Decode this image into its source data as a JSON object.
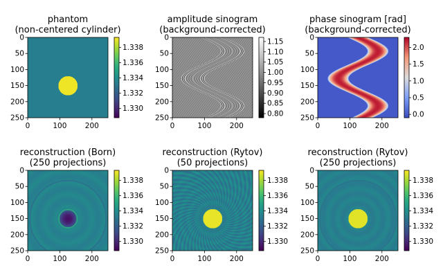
{
  "figure": {
    "panels": [
      {
        "title_lines": [
          "phantom",
          "(non-centered cylinder)"
        ],
        "kind": "phantom-cylinder",
        "colormap": "viridis",
        "xticks": [
          "0",
          "100",
          "200"
        ],
        "yticks": [
          "0",
          "50",
          "100",
          "150",
          "200",
          "250"
        ],
        "colorbar": {
          "ticks": [
            "1.338",
            "1.336",
            "1.334",
            "1.332",
            "1.330"
          ],
          "range": [
            1.3288,
            1.3393
          ]
        }
      },
      {
        "title_lines": [
          "amplitude sinogram",
          "(background-corrected)"
        ],
        "kind": "amplitude-sinogram",
        "colormap": "gray",
        "xticks": [
          "0",
          "100",
          "200"
        ],
        "yticks": [
          "0",
          "50",
          "100",
          "150",
          "200",
          "250"
        ],
        "colorbar": {
          "ticks": [
            "1.15",
            "1.10",
            "1.05",
            "1.00",
            "0.95",
            "0.90",
            "0.85",
            "0.80"
          ],
          "range": [
            0.78,
            1.17
          ]
        }
      },
      {
        "title_lines": [
          "phase sinogram [rad]",
          "(background-corrected)"
        ],
        "kind": "phase-sinogram",
        "colormap": "coolwarm",
        "xticks": [
          "0",
          "100",
          "200"
        ],
        "yticks": [
          "0",
          "50",
          "100",
          "150",
          "200",
          "250"
        ],
        "colorbar": {
          "ticks": [
            "2.0",
            "1.5",
            "1.0",
            "0.5",
            "0.0"
          ],
          "range": [
            -0.1,
            2.3
          ]
        }
      },
      {
        "title_lines": [
          "reconstruction (Born)",
          "(250 projections)"
        ],
        "kind": "reconstruction-born",
        "colormap": "viridis",
        "xticks": [
          "0",
          "100",
          "200"
        ],
        "yticks": [
          "0",
          "50",
          "100",
          "150",
          "200",
          "250"
        ],
        "colorbar": {
          "ticks": [
            "1.338",
            "1.336",
            "1.334",
            "1.332",
            "1.330"
          ],
          "range": [
            1.3288,
            1.3393
          ]
        }
      },
      {
        "title_lines": [
          "reconstruction (Rytov)",
          "(50 projections)"
        ],
        "kind": "reconstruction-rytov-50",
        "colormap": "viridis",
        "xticks": [
          "0",
          "100",
          "200"
        ],
        "yticks": [
          "0",
          "50",
          "100",
          "150",
          "200",
          "250"
        ],
        "colorbar": {
          "ticks": [
            "1.338",
            "1.336",
            "1.334",
            "1.332",
            "1.330"
          ],
          "range": [
            1.3288,
            1.3393
          ]
        }
      },
      {
        "title_lines": [
          "reconstruction (Rytov)",
          "(250 projections)"
        ],
        "kind": "reconstruction-rytov-250",
        "colormap": "viridis",
        "xticks": [
          "0",
          "100",
          "200"
        ],
        "yticks": [
          "0",
          "50",
          "100",
          "150",
          "200",
          "250"
        ],
        "colorbar": {
          "ticks": [
            "1.338",
            "1.336",
            "1.334",
            "1.332",
            "1.330"
          ],
          "range": [
            1.3288,
            1.3393
          ]
        }
      }
    ]
  },
  "chart_data": [
    {
      "type": "heatmap",
      "title": "phantom\n(non-centered cylinder)",
      "xlim": [
        0,
        250
      ],
      "ylim": [
        250,
        0
      ],
      "x_ticks": [
        0,
        100,
        200
      ],
      "y_ticks": [
        0,
        50,
        100,
        150,
        200,
        250
      ],
      "colorbar_ticks": [
        1.33,
        1.332,
        1.334,
        1.336,
        1.338
      ],
      "background_value": 1.333,
      "cylinder": {
        "center_x": 125,
        "center_y": 150,
        "radius": 30,
        "value": 1.339
      }
    },
    {
      "type": "heatmap",
      "title": "amplitude sinogram\n(background-corrected)",
      "xlim": [
        0,
        250
      ],
      "ylim": [
        250,
        0
      ],
      "x_ticks": [
        0,
        100,
        200
      ],
      "y_ticks": [
        0,
        50,
        100,
        150,
        200,
        250
      ],
      "colorbar_ticks": [
        0.8,
        0.85,
        0.9,
        0.95,
        1.0,
        1.05,
        1.1,
        1.15
      ]
    },
    {
      "type": "heatmap",
      "title": "phase sinogram [rad]\n(background-corrected)",
      "xlim": [
        0,
        250
      ],
      "ylim": [
        250,
        0
      ],
      "x_ticks": [
        0,
        100,
        200
      ],
      "y_ticks": [
        0,
        50,
        100,
        150,
        200,
        250
      ],
      "colorbar_ticks": [
        0.0,
        0.5,
        1.0,
        1.5,
        2.0
      ],
      "max_phase": 2.2
    },
    {
      "type": "heatmap",
      "title": "reconstruction (Born)\n(250 projections)",
      "xlim": [
        0,
        250
      ],
      "ylim": [
        250,
        0
      ],
      "x_ticks": [
        0,
        100,
        200
      ],
      "y_ticks": [
        0,
        50,
        100,
        150,
        200,
        250
      ],
      "colorbar_ticks": [
        1.33,
        1.332,
        1.334,
        1.336,
        1.338
      ]
    },
    {
      "type": "heatmap",
      "title": "reconstruction (Rytov)\n(50 projections)",
      "xlim": [
        0,
        250
      ],
      "ylim": [
        250,
        0
      ],
      "x_ticks": [
        0,
        100,
        200
      ],
      "y_ticks": [
        0,
        50,
        100,
        150,
        200,
        250
      ],
      "colorbar_ticks": [
        1.33,
        1.332,
        1.334,
        1.336,
        1.338
      ]
    },
    {
      "type": "heatmap",
      "title": "reconstruction (Rytov)\n(250 projections)",
      "xlim": [
        0,
        250
      ],
      "ylim": [
        250,
        0
      ],
      "x_ticks": [
        0,
        100,
        200
      ],
      "y_ticks": [
        0,
        50,
        100,
        150,
        200,
        250
      ],
      "colorbar_ticks": [
        1.33,
        1.332,
        1.334,
        1.336,
        1.338
      ]
    }
  ]
}
